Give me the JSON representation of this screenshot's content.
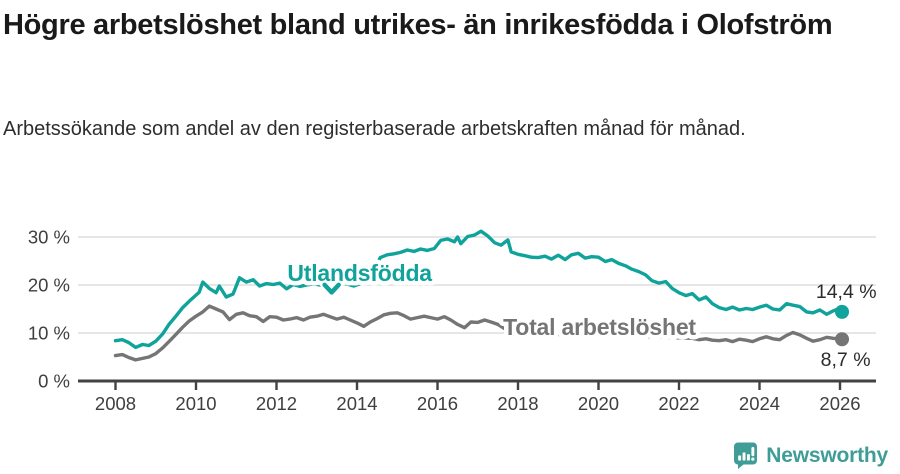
{
  "header": {
    "title": "Högre arbetslöshet bland utrikes- än inrikesfödda i Olofström",
    "subtitle": "Arbetssökande som andel av den registerbaserade arbetskraften månad för månad."
  },
  "footer": {
    "brand": "Newsworthy",
    "logo_icon": "bar-chart-speech-bubble-icon"
  },
  "colors": {
    "teal": "#0fa39b",
    "gray": "#757575",
    "brand_teal": "#3f9d97",
    "grid": "#dedede",
    "axis": "#424242",
    "tick_text": "#3f3f3f",
    "end_label_text": "#2b2b2b"
  },
  "chart_data": {
    "type": "line",
    "grid": "horizontal",
    "legend_position": "inline-labels",
    "x_axis": {
      "unit": "year",
      "ticks": [
        2008,
        2010,
        2012,
        2014,
        2016,
        2018,
        2020,
        2022,
        2024,
        2026
      ],
      "range": [
        2007.7,
        2026.9
      ]
    },
    "y_axis": {
      "unit": "%",
      "tick_values": [
        0,
        10,
        20,
        30
      ],
      "tick_labels": [
        "0 %",
        "10 %",
        "20 %",
        "30 %"
      ],
      "range": [
        0,
        33.5
      ]
    },
    "series": [
      {
        "id": "utlandsfodda",
        "name": "Utlandsfödda",
        "color": "#0fa39b",
        "end_value": 14.4,
        "end_label": "14,4 %",
        "points": [
          [
            2008.0,
            8.4
          ],
          [
            2008.17,
            8.6
          ],
          [
            2008.33,
            8.0
          ],
          [
            2008.5,
            7.0
          ],
          [
            2008.67,
            7.6
          ],
          [
            2008.83,
            7.4
          ],
          [
            2009.0,
            8.3
          ],
          [
            2009.17,
            9.8
          ],
          [
            2009.33,
            11.8
          ],
          [
            2009.5,
            13.5
          ],
          [
            2009.67,
            15.3
          ],
          [
            2009.83,
            16.6
          ],
          [
            2010.0,
            17.9
          ],
          [
            2010.08,
            18.5
          ],
          [
            2010.17,
            20.6
          ],
          [
            2010.33,
            19.3
          ],
          [
            2010.5,
            18.4
          ],
          [
            2010.58,
            19.8
          ],
          [
            2010.75,
            17.5
          ],
          [
            2010.92,
            18.1
          ],
          [
            2011.08,
            21.5
          ],
          [
            2011.25,
            20.6
          ],
          [
            2011.42,
            21.1
          ],
          [
            2011.58,
            19.8
          ],
          [
            2011.75,
            20.3
          ],
          [
            2011.92,
            20.1
          ],
          [
            2012.08,
            20.4
          ],
          [
            2012.25,
            19.2
          ],
          [
            2012.42,
            20.1
          ],
          [
            2012.58,
            19.7
          ],
          [
            2012.75,
            20.0
          ],
          [
            2012.92,
            20.2
          ],
          [
            2013.08,
            20.0
          ],
          [
            2013.25,
            19.6
          ],
          [
            2013.42,
            20.3
          ],
          [
            2013.58,
            20.6
          ],
          [
            2013.75,
            20.2
          ],
          [
            2013.92,
            19.8
          ],
          [
            2014.08,
            20.3
          ],
          [
            2014.25,
            21.3
          ],
          [
            2014.42,
            23.2
          ],
          [
            2014.58,
            25.7
          ],
          [
            2014.75,
            26.3
          ],
          [
            2014.92,
            26.5
          ],
          [
            2015.08,
            26.8
          ],
          [
            2015.25,
            27.3
          ],
          [
            2015.42,
            27.0
          ],
          [
            2015.58,
            27.5
          ],
          [
            2015.75,
            27.2
          ],
          [
            2015.92,
            27.6
          ],
          [
            2016.08,
            29.3
          ],
          [
            2016.25,
            29.6
          ],
          [
            2016.42,
            29.0
          ],
          [
            2016.5,
            30.0
          ],
          [
            2016.58,
            28.6
          ],
          [
            2016.75,
            30.1
          ],
          [
            2016.92,
            30.4
          ],
          [
            2017.08,
            31.2
          ],
          [
            2017.25,
            30.2
          ],
          [
            2017.42,
            28.8
          ],
          [
            2017.58,
            28.3
          ],
          [
            2017.75,
            29.4
          ],
          [
            2017.83,
            26.9
          ],
          [
            2018.0,
            26.4
          ],
          [
            2018.17,
            26.1
          ],
          [
            2018.33,
            25.8
          ],
          [
            2018.5,
            25.7
          ],
          [
            2018.67,
            26.0
          ],
          [
            2018.83,
            25.4
          ],
          [
            2019.0,
            26.2
          ],
          [
            2019.17,
            25.3
          ],
          [
            2019.33,
            26.3
          ],
          [
            2019.5,
            26.6
          ],
          [
            2019.67,
            25.6
          ],
          [
            2019.83,
            25.9
          ],
          [
            2020.0,
            25.8
          ],
          [
            2020.17,
            24.9
          ],
          [
            2020.33,
            25.3
          ],
          [
            2020.5,
            24.5
          ],
          [
            2020.67,
            24.0
          ],
          [
            2020.83,
            23.3
          ],
          [
            2021.0,
            22.8
          ],
          [
            2021.17,
            22.1
          ],
          [
            2021.33,
            20.9
          ],
          [
            2021.5,
            20.4
          ],
          [
            2021.67,
            20.7
          ],
          [
            2021.83,
            19.3
          ],
          [
            2022.0,
            18.4
          ],
          [
            2022.17,
            17.8
          ],
          [
            2022.33,
            18.2
          ],
          [
            2022.5,
            16.9
          ],
          [
            2022.67,
            17.5
          ],
          [
            2022.83,
            16.1
          ],
          [
            2023.0,
            15.3
          ],
          [
            2023.17,
            14.9
          ],
          [
            2023.33,
            15.4
          ],
          [
            2023.5,
            14.8
          ],
          [
            2023.67,
            15.1
          ],
          [
            2023.83,
            14.9
          ],
          [
            2024.0,
            15.4
          ],
          [
            2024.17,
            15.8
          ],
          [
            2024.33,
            15.0
          ],
          [
            2024.5,
            14.8
          ],
          [
            2024.67,
            16.1
          ],
          [
            2024.83,
            15.8
          ],
          [
            2025.0,
            15.5
          ],
          [
            2025.17,
            14.4
          ],
          [
            2025.33,
            14.2
          ],
          [
            2025.5,
            14.8
          ],
          [
            2025.67,
            13.9
          ],
          [
            2025.83,
            14.6
          ],
          [
            2025.92,
            14.9
          ],
          [
            2026.05,
            14.4
          ]
        ]
      },
      {
        "id": "total",
        "name": "Total arbetslöshet",
        "color": "#757575",
        "end_value": 8.7,
        "end_label": "8,7 %",
        "points": [
          [
            2008.0,
            5.3
          ],
          [
            2008.17,
            5.5
          ],
          [
            2008.33,
            4.9
          ],
          [
            2008.5,
            4.4
          ],
          [
            2008.67,
            4.7
          ],
          [
            2008.83,
            5.0
          ],
          [
            2009.0,
            5.7
          ],
          [
            2009.17,
            6.9
          ],
          [
            2009.33,
            8.2
          ],
          [
            2009.5,
            9.7
          ],
          [
            2009.67,
            11.2
          ],
          [
            2009.83,
            12.5
          ],
          [
            2010.0,
            13.5
          ],
          [
            2010.17,
            14.4
          ],
          [
            2010.33,
            15.6
          ],
          [
            2010.5,
            15.0
          ],
          [
            2010.67,
            14.4
          ],
          [
            2010.83,
            12.8
          ],
          [
            2011.0,
            13.9
          ],
          [
            2011.17,
            14.2
          ],
          [
            2011.33,
            13.6
          ],
          [
            2011.5,
            13.4
          ],
          [
            2011.67,
            12.4
          ],
          [
            2011.83,
            13.4
          ],
          [
            2012.0,
            13.3
          ],
          [
            2012.17,
            12.7
          ],
          [
            2012.33,
            12.9
          ],
          [
            2012.5,
            13.2
          ],
          [
            2012.67,
            12.7
          ],
          [
            2012.83,
            13.3
          ],
          [
            2013.0,
            13.5
          ],
          [
            2013.17,
            13.9
          ],
          [
            2013.33,
            13.4
          ],
          [
            2013.5,
            12.9
          ],
          [
            2013.67,
            13.3
          ],
          [
            2013.83,
            12.7
          ],
          [
            2014.0,
            12.1
          ],
          [
            2014.17,
            11.4
          ],
          [
            2014.33,
            12.3
          ],
          [
            2014.5,
            13.0
          ],
          [
            2014.67,
            13.8
          ],
          [
            2014.83,
            14.1
          ],
          [
            2015.0,
            14.2
          ],
          [
            2015.17,
            13.6
          ],
          [
            2015.33,
            12.9
          ],
          [
            2015.5,
            13.2
          ],
          [
            2015.67,
            13.5
          ],
          [
            2015.83,
            13.2
          ],
          [
            2016.0,
            12.9
          ],
          [
            2016.17,
            13.4
          ],
          [
            2016.33,
            12.7
          ],
          [
            2016.5,
            11.8
          ],
          [
            2016.67,
            11.1
          ],
          [
            2016.83,
            12.3
          ],
          [
            2017.0,
            12.2
          ],
          [
            2017.17,
            12.7
          ],
          [
            2017.33,
            12.3
          ],
          [
            2017.5,
            11.8
          ],
          [
            2017.67,
            10.9
          ],
          [
            2017.83,
            10.4
          ],
          [
            2018.0,
            10.3
          ],
          [
            2018.33,
            10.0
          ],
          [
            2018.67,
            9.9
          ],
          [
            2019.0,
            9.7
          ],
          [
            2019.33,
            9.5
          ],
          [
            2019.67,
            9.4
          ],
          [
            2020.0,
            9.6
          ],
          [
            2020.33,
            9.8
          ],
          [
            2020.67,
            9.5
          ],
          [
            2021.0,
            9.4
          ],
          [
            2021.33,
            9.2
          ],
          [
            2021.67,
            9.1
          ],
          [
            2022.0,
            9.0
          ],
          [
            2022.33,
            8.9
          ],
          [
            2022.5,
            8.6
          ],
          [
            2022.67,
            8.8
          ],
          [
            2022.83,
            8.5
          ],
          [
            2023.0,
            8.4
          ],
          [
            2023.17,
            8.6
          ],
          [
            2023.33,
            8.2
          ],
          [
            2023.5,
            8.7
          ],
          [
            2023.67,
            8.5
          ],
          [
            2023.83,
            8.2
          ],
          [
            2024.0,
            8.8
          ],
          [
            2024.17,
            9.2
          ],
          [
            2024.33,
            8.8
          ],
          [
            2024.5,
            8.6
          ],
          [
            2024.67,
            9.5
          ],
          [
            2024.83,
            10.1
          ],
          [
            2025.0,
            9.6
          ],
          [
            2025.17,
            8.9
          ],
          [
            2025.33,
            8.3
          ],
          [
            2025.5,
            8.6
          ],
          [
            2025.67,
            9.1
          ],
          [
            2025.83,
            8.9
          ],
          [
            2026.05,
            8.7
          ]
        ]
      }
    ],
    "annotations": [
      {
        "id": "series-label-utlandsfodda",
        "kind": "series-label",
        "text": "Utlandsfödda",
        "series": "utlandsfodda",
        "x": 2012.27,
        "y": 20.8,
        "arrow": {
          "x": 2013.37,
          "y": 19.3
        }
      },
      {
        "id": "series-label-total",
        "kind": "series-label",
        "text": "Total arbetslöshet",
        "series": "total",
        "x": 2017.63,
        "y": 9.6
      },
      {
        "id": "end-label-utlandsfodda",
        "kind": "end-label",
        "text": "14,4 %",
        "series": "utlandsfodda",
        "x": 2025.4,
        "y": 17.3
      },
      {
        "id": "end-label-total",
        "kind": "end-label",
        "text": "8,7 %",
        "series": "total",
        "x": 2025.52,
        "y": 3.1
      }
    ]
  }
}
